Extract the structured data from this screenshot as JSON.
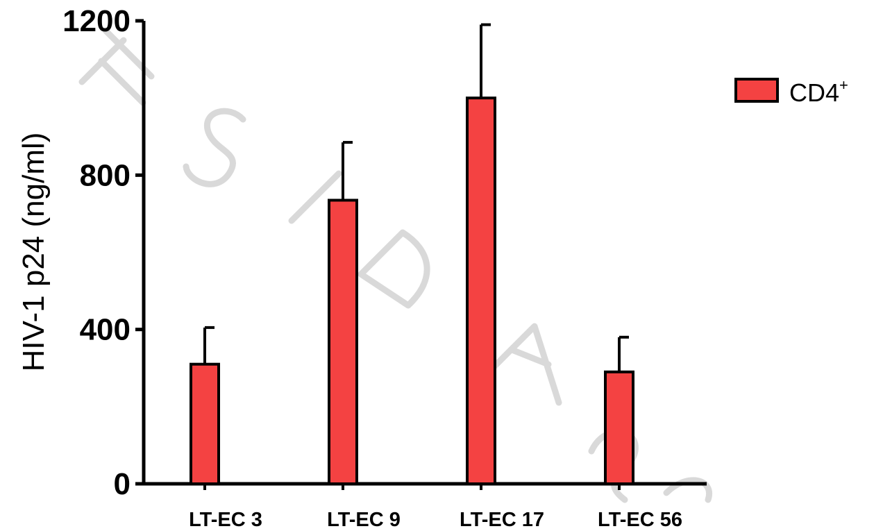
{
  "chart_data": {
    "type": "bar",
    "title": "",
    "xlabel": "",
    "ylabel": "HIV-1 p24 (ng/ml)",
    "categories": [
      "LT-EC 3",
      "LT-EC 9",
      "LT-EC 17",
      "LT-EC 56"
    ],
    "series": [
      {
        "name": "CD4⁺",
        "legend_base": "CD4",
        "legend_sup": "+",
        "color": "#f44242",
        "values": [
          310,
          735,
          1000,
          290
        ],
        "error_upper": [
          405,
          885,
          1190,
          380
        ]
      }
    ],
    "ylim": [
      0,
      1200
    ],
    "yticks": [
      "0",
      "400",
      "800",
      "1200"
    ],
    "grid": false,
    "legend_position": "top-right"
  }
}
